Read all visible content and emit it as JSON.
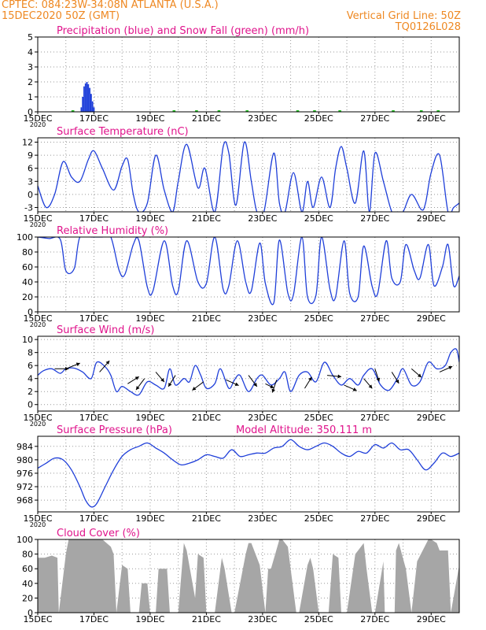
{
  "header": {
    "line1_left": "CPTEC:   084:23W-34:08N   ATLANTA (U.S.A.)",
    "line2_left": "15DEC2020 50Z (GMT)",
    "line2_right": "Vertical Grid Line: 50Z",
    "line3_right": "TQ0126L028",
    "color": "#ee8822"
  },
  "colors": {
    "title": "#e0148c",
    "line": "#1f3fd9",
    "precip": "#1f3fd9",
    "snow": "#20c020",
    "cloud": "#a6a6a6",
    "grid": "#999999",
    "text": "#000000"
  },
  "x_ticks": [
    "15DEC",
    "17DEC",
    "19DEC",
    "21DEC",
    "23DEC",
    "25DEC",
    "27DEC",
    "29DEC"
  ],
  "year_label": "2020",
  "chart_data": [
    {
      "id": "precip",
      "type": "bar",
      "title": "Precipitation (blue) and Snow Fall (green) (mm/h)",
      "ylim": [
        0,
        5
      ],
      "yticks": [
        0,
        1,
        2,
        3,
        4,
        5
      ],
      "xlim": [
        0,
        15
      ],
      "series": [
        {
          "name": "Precipitation",
          "color": "blue",
          "x": [
            1.55,
            1.6,
            1.65,
            1.7,
            1.75,
            1.8,
            1.85,
            1.9,
            1.95,
            2.0
          ],
          "values": [
            0.3,
            1.0,
            1.7,
            1.9,
            2.0,
            1.85,
            1.6,
            1.2,
            0.7,
            0.3
          ]
        },
        {
          "name": "Snow Fall",
          "color": "green",
          "x": [],
          "values": []
        }
      ]
    },
    {
      "id": "temperature",
      "type": "line",
      "title": "Surface Temperature (nC)",
      "ylim": [
        -4,
        13
      ],
      "yticks": [
        -3,
        0,
        3,
        6,
        9,
        12
      ],
      "xlim": [
        0,
        15
      ],
      "x": [
        0,
        0.3,
        0.6,
        0.9,
        1.2,
        1.5,
        1.8,
        2.0,
        2.3,
        2.7,
        3.0,
        3.2,
        3.4,
        3.6,
        3.9,
        4.2,
        4.5,
        4.8,
        5.0,
        5.3,
        5.7,
        5.95,
        6.3,
        6.6,
        6.8,
        7.05,
        7.35,
        7.6,
        7.8,
        8.05,
        8.4,
        8.6,
        8.8,
        9.1,
        9.4,
        9.6,
        9.8,
        10.1,
        10.4,
        10.6,
        10.8,
        11.0,
        11.3,
        11.6,
        11.8,
        12.0,
        12.3,
        12.6,
        12.8,
        13.0,
        13.3,
        13.65,
        13.8,
        14.0,
        14.3,
        14.6,
        14.8,
        15.0
      ],
      "values": [
        2,
        -3,
        0,
        7.5,
        4,
        3,
        8,
        10,
        6,
        1,
        6.5,
        8,
        0,
        -4,
        -2,
        9,
        1,
        -4,
        3,
        11.5,
        1.5,
        6,
        -4,
        11,
        9.5,
        -2.5,
        12,
        3,
        -4,
        -4,
        9.5,
        -2,
        -4,
        5,
        -4,
        3,
        -3,
        4,
        -3,
        6,
        11,
        6,
        -2,
        10,
        -4,
        9.5,
        3,
        -4,
        -4,
        -4,
        0,
        -3.5,
        -2,
        5,
        9,
        -4,
        -3,
        -2
      ]
    },
    {
      "id": "humidity",
      "type": "line",
      "title": "Relative Humidity (%)",
      "ylim": [
        0,
        100
      ],
      "yticks": [
        0,
        20,
        40,
        60,
        80,
        100
      ],
      "xlim": [
        0,
        15
      ],
      "x": [
        0,
        0.4,
        0.8,
        1.0,
        1.3,
        1.5,
        1.9,
        2.3,
        2.6,
        2.9,
        3.1,
        3.4,
        3.6,
        3.9,
        4.1,
        4.5,
        4.8,
        5.0,
        5.3,
        5.7,
        6.0,
        6.3,
        6.6,
        6.8,
        7.1,
        7.4,
        7.6,
        7.9,
        8.1,
        8.4,
        8.6,
        8.9,
        9.1,
        9.4,
        9.6,
        9.9,
        10.1,
        10.4,
        10.6,
        10.9,
        11.1,
        11.4,
        11.6,
        11.9,
        12.1,
        12.4,
        12.6,
        12.9,
        13.1,
        13.4,
        13.6,
        13.9,
        14.1,
        14.4,
        14.6,
        14.8,
        15.0
      ],
      "values": [
        100,
        98,
        97,
        55,
        58,
        100,
        100,
        100,
        100,
        55,
        50,
        90,
        95,
        33,
        28,
        95,
        35,
        28,
        95,
        40,
        38,
        100,
        30,
        35,
        95,
        40,
        28,
        92,
        38,
        12,
        96,
        25,
        23,
        100,
        20,
        22,
        100,
        30,
        20,
        95,
        25,
        20,
        88,
        34,
        25,
        95,
        45,
        40,
        90,
        55,
        45,
        90,
        35,
        60,
        90,
        35,
        48
      ]
    },
    {
      "id": "wind",
      "type": "line",
      "title": "Surface Wind (m/s)",
      "ylim": [
        -1,
        10.5
      ],
      "yticks": [
        0,
        2,
        4,
        6,
        8,
        10
      ],
      "xlim": [
        0,
        15
      ],
      "x": [
        0,
        0.2,
        0.5,
        0.8,
        1.0,
        1.3,
        1.6,
        1.9,
        2.1,
        2.4,
        2.6,
        2.8,
        3.0,
        3.3,
        3.6,
        3.9,
        4.2,
        4.5,
        4.7,
        4.9,
        5.2,
        5.4,
        5.6,
        5.8,
        6.0,
        6.3,
        6.5,
        6.8,
        7.0,
        7.2,
        7.5,
        7.8,
        8.0,
        8.3,
        8.6,
        8.8,
        9.0,
        9.3,
        9.6,
        9.9,
        10.2,
        10.5,
        10.8,
        11.1,
        11.4,
        11.6,
        11.9,
        12.2,
        12.5,
        12.8,
        13.0,
        13.3,
        13.6,
        13.9,
        14.2,
        14.5,
        14.7,
        14.9,
        15.0
      ],
      "values": [
        4.5,
        5.2,
        5.5,
        4.8,
        5.5,
        5.6,
        5.0,
        4.0,
        6.5,
        5.8,
        4.5,
        2.0,
        2.8,
        2.0,
        1.5,
        3.5,
        3.0,
        2.5,
        5.5,
        3.0,
        4.0,
        3.5,
        6.0,
        4.5,
        2.5,
        3.2,
        5.5,
        2.5,
        3.8,
        4.5,
        2.0,
        4.0,
        4.5,
        3.0,
        4.0,
        5.0,
        2.0,
        4.5,
        5.0,
        3.5,
        6.5,
        4.5,
        3.0,
        4.0,
        3.0,
        4.5,
        5.5,
        3.0,
        2.2,
        4.0,
        5.5,
        3.0,
        3.5,
        6.5,
        5.5,
        6.0,
        8.0,
        8.5,
        6.5
      ],
      "arrows": [
        {
          "x": 0.6,
          "speed": 5.5,
          "dx": 1.0,
          "dy": 0.0
        },
        {
          "x": 1.0,
          "speed": 5.5,
          "dx": 1.0,
          "dy": -0.4
        },
        {
          "x": 2.2,
          "speed": 5.0,
          "dx": 0.7,
          "dy": -0.8
        },
        {
          "x": 3.2,
          "speed": 3.2,
          "dx": 0.8,
          "dy": -0.5
        },
        {
          "x": 3.8,
          "speed": 4.0,
          "dx": -0.6,
          "dy": 0.8
        },
        {
          "x": 4.2,
          "speed": 5.0,
          "dx": 0.6,
          "dy": 0.7
        },
        {
          "x": 4.9,
          "speed": 4.5,
          "dx": -0.5,
          "dy": 0.8
        },
        {
          "x": 5.9,
          "speed": 3.5,
          "dx": -0.8,
          "dy": 0.6
        },
        {
          "x": 6.7,
          "speed": 3.8,
          "dx": 0.9,
          "dy": 0.4
        },
        {
          "x": 7.5,
          "speed": 4.5,
          "dx": 0.6,
          "dy": 0.8
        },
        {
          "x": 8.1,
          "speed": 3.2,
          "dx": 0.6,
          "dy": 0.3
        },
        {
          "x": 8.5,
          "speed": 3.8,
          "dx": -0.3,
          "dy": 0.9
        },
        {
          "x": 9.5,
          "speed": 2.5,
          "dx": 0.5,
          "dy": -0.8
        },
        {
          "x": 10.3,
          "speed": 4.5,
          "dx": 1.0,
          "dy": 0.1
        },
        {
          "x": 10.9,
          "speed": 3.0,
          "dx": 0.9,
          "dy": 0.4
        },
        {
          "x": 11.6,
          "speed": 4.0,
          "dx": 0.6,
          "dy": 0.7
        },
        {
          "x": 12.0,
          "speed": 5.5,
          "dx": 0.3,
          "dy": 0.9
        },
        {
          "x": 12.6,
          "speed": 5.0,
          "dx": 0.5,
          "dy": 0.8
        },
        {
          "x": 13.3,
          "speed": 5.5,
          "dx": 0.7,
          "dy": 0.6
        },
        {
          "x": 14.3,
          "speed": 5.0,
          "dx": 0.9,
          "dy": -0.4
        }
      ]
    },
    {
      "id": "pressure",
      "type": "line",
      "title": "Surface Pressure (hPa)",
      "annotation": "Model Altitude: 350.111  m",
      "ylim": [
        964.5,
        987
      ],
      "yticks": [
        968,
        972,
        976,
        980,
        984
      ],
      "xlim": [
        0,
        15
      ],
      "x": [
        0,
        0.3,
        0.6,
        0.9,
        1.2,
        1.5,
        1.7,
        1.9,
        2.1,
        2.4,
        2.7,
        3.0,
        3.3,
        3.6,
        3.9,
        4.2,
        4.5,
        4.8,
        5.1,
        5.4,
        5.7,
        6.0,
        6.3,
        6.6,
        6.9,
        7.2,
        7.5,
        7.8,
        8.1,
        8.4,
        8.7,
        9.0,
        9.3,
        9.6,
        9.9,
        10.2,
        10.5,
        10.8,
        11.1,
        11.4,
        11.7,
        12.0,
        12.3,
        12.6,
        12.9,
        13.2,
        13.5,
        13.8,
        14.1,
        14.4,
        14.7,
        15.0
      ],
      "values": [
        977.5,
        979,
        980.5,
        980,
        977,
        972,
        968,
        966,
        967,
        972,
        977,
        981,
        983,
        984,
        985,
        983.5,
        982,
        980,
        978.5,
        979,
        980,
        981.5,
        981,
        980.5,
        983,
        981,
        981.5,
        982,
        982,
        983.5,
        984,
        986,
        984,
        983,
        984,
        985,
        984,
        982,
        981,
        982.5,
        982,
        984.5,
        983.5,
        985,
        983,
        983,
        980,
        977,
        979,
        982,
        981,
        982
      ]
    },
    {
      "id": "cloud",
      "type": "area",
      "title": "Cloud Cover (%)",
      "ylim": [
        0,
        100
      ],
      "yticks": [
        0,
        20,
        40,
        60,
        80,
        100
      ],
      "xlim": [
        0,
        15
      ],
      "x": [
        0,
        0.1,
        0.25,
        0.5,
        0.7,
        0.75,
        1.0,
        1.1,
        1.3,
        1.5,
        1.8,
        2.0,
        2.3,
        2.6,
        2.7,
        2.8,
        3.0,
        3.2,
        3.3,
        3.6,
        3.7,
        3.9,
        4.0,
        4.2,
        4.3,
        4.6,
        4.7,
        4.9,
        5.0,
        5.2,
        5.3,
        5.6,
        5.7,
        5.9,
        6.0,
        6.2,
        6.3,
        6.55,
        6.65,
        6.9,
        7.0,
        7.4,
        7.5,
        7.6,
        7.9,
        8.1,
        8.2,
        8.3,
        8.6,
        8.7,
        8.9,
        9.0,
        9.2,
        9.3,
        9.6,
        9.7,
        9.8,
        10.0,
        10.3,
        10.35,
        10.5,
        10.7,
        10.8,
        11.0,
        11.3,
        11.4,
        11.6,
        11.7,
        11.9,
        12.0,
        12.3,
        12.35,
        12.7,
        12.75,
        12.85,
        13.1,
        13.3,
        13.5,
        13.9,
        14.0,
        14.2,
        14.3,
        14.6,
        14.7,
        15.0
      ],
      "values": [
        75,
        75,
        75,
        78,
        75,
        0,
        80,
        100,
        100,
        100,
        100,
        100,
        100,
        90,
        80,
        0,
        65,
        60,
        0,
        0,
        40,
        40,
        0,
        0,
        60,
        60,
        0,
        0,
        0,
        95,
        85,
        20,
        80,
        75,
        0,
        0,
        0,
        75,
        60,
        0,
        0,
        80,
        95,
        95,
        65,
        0,
        60,
        60,
        100,
        100,
        90,
        60,
        0,
        0,
        65,
        75,
        60,
        0,
        0,
        0,
        80,
        75,
        0,
        0,
        80,
        85,
        95,
        60,
        0,
        0,
        70,
        0,
        0,
        85,
        95,
        60,
        0,
        70,
        100,
        100,
        95,
        85,
        85,
        0,
        65
      ]
    }
  ]
}
